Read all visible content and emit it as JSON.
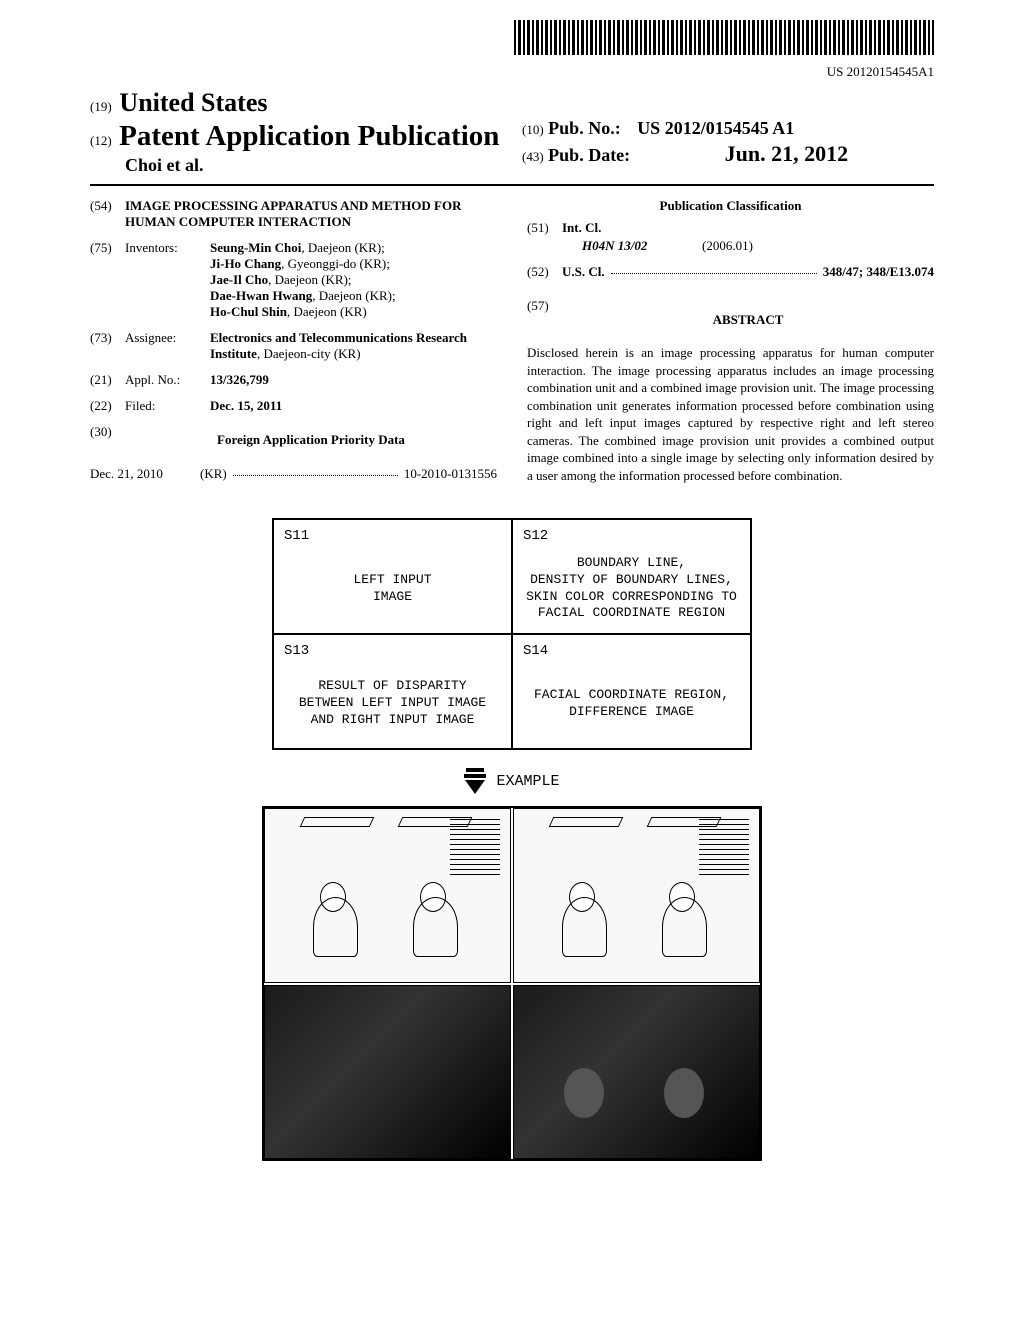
{
  "barcode_text": "US 20120154545A1",
  "header": {
    "country_prefix": "(19)",
    "country": "United States",
    "pub_type_prefix": "(12)",
    "pub_type": "Patent Application Publication",
    "authors": "Choi et al.",
    "pub_no_prefix": "(10)",
    "pub_no_label": "Pub. No.:",
    "pub_no": "US 2012/0154545 A1",
    "pub_date_prefix": "(43)",
    "pub_date_label": "Pub. Date:",
    "pub_date": "Jun. 21, 2012"
  },
  "fields": {
    "title_num": "(54)",
    "title": "IMAGE PROCESSING APPARATUS AND METHOD FOR HUMAN COMPUTER INTERACTION",
    "inventors_num": "(75)",
    "inventors_label": "Inventors:",
    "inventors": [
      {
        "name": "Seung-Min Choi",
        "loc": ", Daejeon (KR);"
      },
      {
        "name": "Ji-Ho Chang",
        "loc": ", Gyeonggi-do (KR);"
      },
      {
        "name": "Jae-Il Cho",
        "loc": ", Daejeon (KR);"
      },
      {
        "name": "Dae-Hwan Hwang",
        "loc": ", Daejeon (KR);"
      },
      {
        "name": "Ho-Chul Shin",
        "loc": ", Daejeon (KR)"
      }
    ],
    "assignee_num": "(73)",
    "assignee_label": "Assignee:",
    "assignee_name": "Electronics and Telecommunications Research Institute",
    "assignee_loc": ", Daejeon-city (KR)",
    "appl_num": "(21)",
    "appl_label": "Appl. No.:",
    "appl_val": "13/326,799",
    "filed_num": "(22)",
    "filed_label": "Filed:",
    "filed_val": "Dec. 15, 2011",
    "priority_num": "(30)",
    "priority_header": "Foreign Application Priority Data",
    "priority_date": "Dec. 21, 2010",
    "priority_country": "(KR)",
    "priority_val": "10-2010-0131556"
  },
  "classification": {
    "header": "Publication Classification",
    "intcl_num": "(51)",
    "intcl_label": "Int. Cl.",
    "intcl_code": "H04N 13/02",
    "intcl_year": "(2006.01)",
    "uscl_num": "(52)",
    "uscl_label": "U.S. Cl.",
    "uscl_val": "348/47; 348/E13.074"
  },
  "abstract": {
    "num": "(57)",
    "header": "ABSTRACT",
    "text": "Disclosed herein is an image processing apparatus for human computer interaction. The image processing apparatus includes an image processing combination unit and a combined image provision unit. The image processing combination unit generates information processed before combination using right and left input images captured by respective right and left stereo cameras. The combined image provision unit provides a combined output image combined into a single image by selecting only information desired by a user among the information processed before combination."
  },
  "figure": {
    "cells": [
      {
        "id": "S11",
        "text": "LEFT INPUT\nIMAGE"
      },
      {
        "id": "S12",
        "text": "BOUNDARY LINE,\nDENSITY OF BOUNDARY LINES,\nSKIN COLOR CORRESPONDING TO\nFACIAL COORDINATE REGION"
      },
      {
        "id": "S13",
        "text": "RESULT OF DISPARITY\nBETWEEN LEFT INPUT IMAGE\nAND RIGHT INPUT IMAGE"
      },
      {
        "id": "S14",
        "text": "FACIAL COORDINATE REGION,\nDIFFERENCE IMAGE"
      }
    ],
    "example_label": "EXAMPLE"
  }
}
